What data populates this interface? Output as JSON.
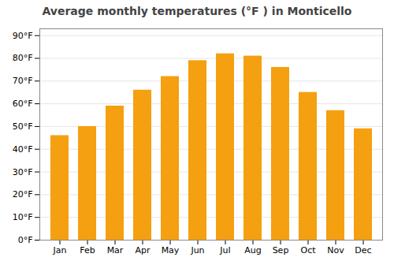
{
  "chart_data": {
    "type": "bar",
    "title": "Average monthly temperatures (°F ) in Monticello",
    "categories": [
      "Jan",
      "Feb",
      "Mar",
      "Apr",
      "May",
      "Jun",
      "Jul",
      "Aug",
      "Sep",
      "Oct",
      "Nov",
      "Dec"
    ],
    "values": [
      46,
      50,
      59,
      66,
      72,
      79,
      82,
      81,
      76,
      65,
      57,
      49
    ],
    "color": "#F5A010",
    "ylim": [
      0,
      93
    ],
    "yticks": [
      {
        "value": 0,
        "label": "0°F"
      },
      {
        "value": 10,
        "label": "10°F"
      },
      {
        "value": 20,
        "label": "20°F"
      },
      {
        "value": 30,
        "label": "30°F"
      },
      {
        "value": 40,
        "label": "40°F"
      },
      {
        "value": 50,
        "label": "50°F"
      },
      {
        "value": 60,
        "label": "60°F"
      },
      {
        "value": 70,
        "label": "70°F"
      },
      {
        "value": 80,
        "label": "80°F"
      },
      {
        "value": 90,
        "label": "90°F"
      }
    ],
    "grid": true
  }
}
